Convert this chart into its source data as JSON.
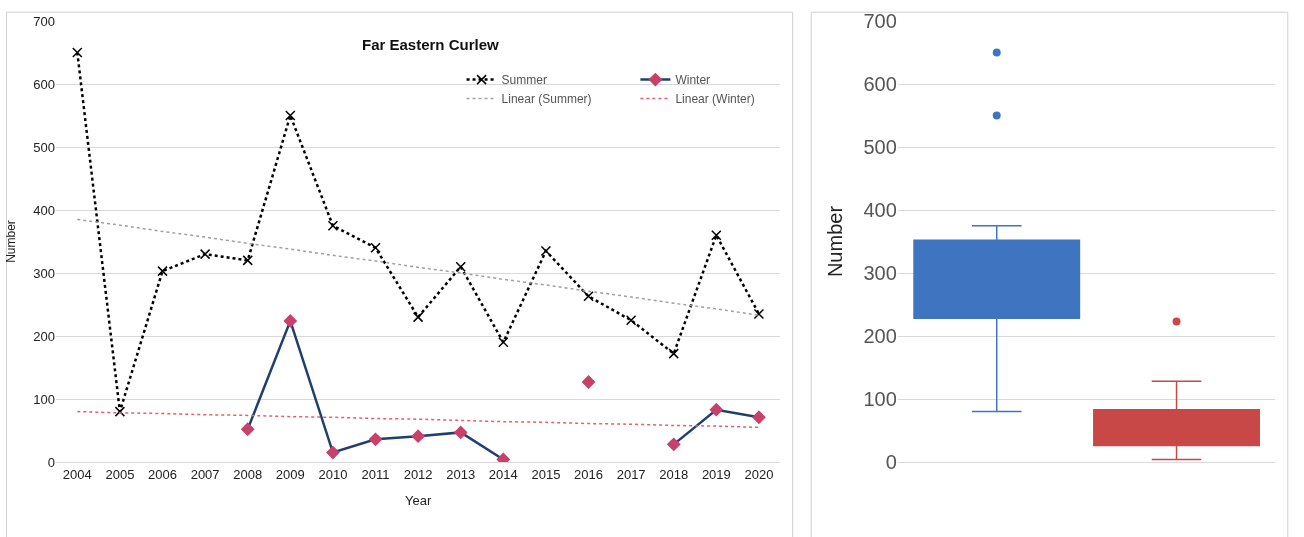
{
  "chart_data": [
    {
      "type": "line",
      "title": "Far Eastern Curlew",
      "xlabel": "Year",
      "ylabel": "Number",
      "categories": [
        "2004",
        "2005",
        "2006",
        "2007",
        "2008",
        "2009",
        "2010",
        "2011",
        "2012",
        "2013",
        "2014",
        "2015",
        "2016",
        "2017",
        "2018",
        "2019",
        "2020"
      ],
      "series": [
        {
          "name": "Summer",
          "color": "#000000",
          "marker": "cross",
          "line_style": "dotted",
          "values": [
            650,
            80,
            303,
            330,
            320,
            550,
            375,
            340,
            230,
            310,
            190,
            335,
            263,
            225,
            172,
            360,
            235
          ]
        },
        {
          "name": "Winter",
          "color": "#1f3f6e",
          "colors": [
            "#c8416a",
            "#c8416a",
            "#c8416a",
            "#c8416a",
            "#c8416a",
            "#c8416a",
            "#c8416a",
            "#c8416a",
            "#c8416a",
            "#c8416a",
            "#c8416a",
            "#c8416a",
            "#c8416a",
            "#c8416a",
            "#c8416a",
            "#c8416a",
            "#c8416a"
          ],
          "marker": "diamond",
          "line_style": "solid",
          "values": [
            null,
            null,
            null,
            null,
            52,
            224,
            15,
            36,
            41,
            47,
            4,
            null,
            127,
            null,
            28,
            83,
            71
          ]
        },
        {
          "name": "Linear (Summer)",
          "color": "#a0a0a0",
          "marker": "none",
          "line_style": "dotted",
          "values": [
            385,
            376,
            366,
            357,
            347,
            338,
            328,
            319,
            309,
            300,
            290,
            281,
            271,
            262,
            252,
            243,
            233
          ]
        },
        {
          "name": "Linear (Winter)",
          "color": "#e06070",
          "marker": "none",
          "line_style": "dotted",
          "values": [
            80,
            78,
            77,
            75,
            74,
            72,
            71,
            69,
            68,
            66,
            64,
            63,
            61,
            60,
            58,
            57,
            55
          ]
        }
      ],
      "ylim": [
        0,
        700
      ],
      "yticks": [
        0,
        100,
        200,
        300,
        400,
        500,
        600,
        700
      ],
      "grid": "y",
      "legend": "top right"
    },
    {
      "type": "box",
      "ylabel": "Number",
      "categories": [
        null,
        null
      ],
      "colors": [
        "#3f74c0",
        "#c84848"
      ],
      "boxes": [
        {
          "low": 80,
          "q1": 228,
          "median": 312,
          "q3": 352,
          "high": 375,
          "outliers": [
            550,
            650
          ]
        },
        {
          "low": 4,
          "q1": 26,
          "median": 47,
          "q3": 83,
          "high": 128,
          "outliers": [
            223
          ]
        }
      ],
      "ylim": [
        0,
        700
      ],
      "yticks": [
        0,
        100,
        200,
        300,
        400,
        500,
        600,
        700
      ],
      "grid": "y",
      "tick_labels": "y"
    }
  ]
}
